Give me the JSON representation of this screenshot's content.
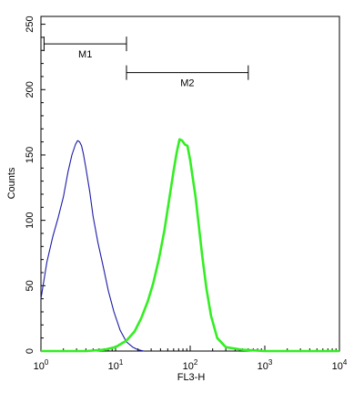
{
  "chart_data": {
    "type": "line",
    "title": "",
    "xlabel": "FL3-H",
    "ylabel": "Counts",
    "x_scale": "log",
    "xlim": [
      1,
      10000
    ],
    "ylim": [
      0,
      256
    ],
    "grid": false,
    "y_ticks": [
      "0",
      "50",
      "100",
      "150",
      "200",
      "250"
    ],
    "x_ticks": [
      {
        "base": "10",
        "exp": "0",
        "value": 1
      },
      {
        "base": "10",
        "exp": "1",
        "value": 10
      },
      {
        "base": "10",
        "exp": "2",
        "value": 100
      },
      {
        "base": "10",
        "exp": "3",
        "value": 1000
      },
      {
        "base": "10",
        "exp": "4",
        "value": 10000
      }
    ],
    "markers": [
      {
        "label": "M1",
        "x_start": 1.1,
        "x_end": 14,
        "y": 235
      },
      {
        "label": "M2",
        "x_start": 14,
        "x_end": 600,
        "y": 213
      }
    ],
    "series": [
      {
        "color": "#1a1aa8",
        "x": [
          1.0,
          1.2,
          1.45,
          1.7,
          2.0,
          2.3,
          2.6,
          2.9,
          3.1,
          3.3,
          3.5,
          3.7,
          4.0,
          4.5,
          5.0,
          5.8,
          6.8,
          8.0,
          9.5,
          11.5,
          14,
          17,
          20,
          24
        ],
        "y": [
          40,
          68,
          88,
          102,
          118,
          137,
          150,
          158,
          161,
          160,
          157,
          151,
          140,
          122,
          103,
          83,
          65,
          46,
          30,
          16,
          7,
          3,
          1,
          0
        ]
      },
      {
        "color": "#33ee22",
        "x": [
          1.0,
          2.0,
          4.0,
          7.0,
          10,
          14,
          18,
          22,
          27,
          32,
          38,
          45,
          52,
          60,
          66,
          72,
          78,
          85,
          92,
          100,
          108,
          118,
          130,
          145,
          165,
          190,
          230,
          300,
          500,
          1000,
          10000
        ],
        "y": [
          0,
          0,
          0,
          1,
          3,
          8,
          15,
          25,
          38,
          52,
          70,
          92,
          115,
          138,
          152,
          162,
          161,
          158,
          157,
          146,
          133,
          118,
          97,
          73,
          48,
          27,
          10,
          3,
          1,
          0,
          0
        ]
      }
    ]
  }
}
